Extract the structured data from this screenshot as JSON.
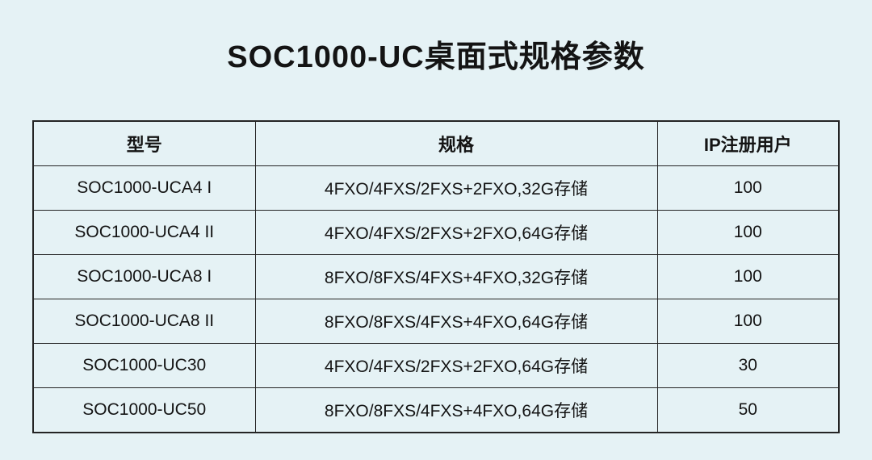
{
  "page": {
    "title": "SOC1000-UC桌面式规格参数",
    "background_color": "#e5f2f5",
    "border_color": "#242424",
    "text_color": "#141414"
  },
  "table": {
    "headers": [
      "型号",
      "规格",
      "IP注册用户"
    ],
    "rows": [
      {
        "model": "SOC1000-UCA4 I",
        "spec": "4FXO/4FXS/2FXS+2FXO,32G存储",
        "users": "100"
      },
      {
        "model": "SOC1000-UCA4 II",
        "spec": "4FXO/4FXS/2FXS+2FXO,64G存储",
        "users": "100"
      },
      {
        "model": "SOC1000-UCA8 I",
        "spec": "8FXO/8FXS/4FXS+4FXO,32G存储",
        "users": "100"
      },
      {
        "model": "SOC1000-UCA8 II",
        "spec": "8FXO/8FXS/4FXS+4FXO,64G存储",
        "users": "100"
      },
      {
        "model": "SOC1000-UC30",
        "spec": "4FXO/4FXS/2FXS+2FXO,64G存储",
        "users": "30"
      },
      {
        "model": "SOC1000-UC50",
        "spec": "8FXO/8FXS/4FXS+4FXO,64G存储",
        "users": "50"
      }
    ]
  }
}
